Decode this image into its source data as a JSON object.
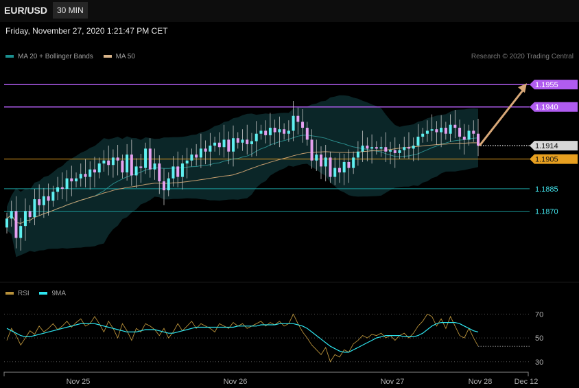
{
  "header": {
    "symbol": "EUR/USD",
    "timeframe": "30 MIN"
  },
  "datetime": "Friday, November 27, 2020 1:21:47 PM CET",
  "legend": {
    "main": [
      {
        "label": "MA 20 + Bollinger Bands",
        "color": "#1a8f8f"
      },
      {
        "label": "MA 50",
        "color": "#d8b48a"
      }
    ],
    "rsi": [
      {
        "label": "RSI",
        "color": "#b8913a"
      },
      {
        "label": "9MA",
        "color": "#2ee6f0"
      }
    ]
  },
  "credit": "Research © 2020 Trading Central",
  "colors": {
    "up_candle": "#5ff0f0",
    "down_candle": "#e6a0f0",
    "resistance": "#b05cf0",
    "support": "#1a9a9a",
    "pivot": "#e8a020",
    "arrow": "#d8a878"
  },
  "chart_data": [
    {
      "type": "candlestick",
      "y_range": [
        1.1825,
        1.1968
      ],
      "x_labels": [
        "Nov 25",
        "Nov 26",
        "Nov 27",
        "Nov 28",
        "Dec 12"
      ],
      "price_levels": [
        {
          "label": "1.1955",
          "value": 1.1955,
          "kind": "resistance",
          "tag": "filled"
        },
        {
          "label": "1.1940",
          "value": 1.194,
          "kind": "resistance",
          "tag": "filled"
        },
        {
          "label": "1.1914",
          "value": 1.1914,
          "kind": "last",
          "tag": "filled"
        },
        {
          "label": "1.1905",
          "value": 1.1905,
          "kind": "pivot",
          "tag": "filled"
        },
        {
          "label": "1.1885",
          "value": 1.1885,
          "kind": "support",
          "tag": "text"
        },
        {
          "label": "1.1870",
          "value": 1.187,
          "kind": "support",
          "tag": "text"
        }
      ],
      "close_path": [
        1.1865,
        1.187,
        1.1852,
        1.186,
        1.187,
        1.1866,
        1.1878,
        1.1874,
        1.188,
        1.1877,
        1.1883,
        1.1886,
        1.1885,
        1.1892,
        1.189,
        1.1892,
        1.1895,
        1.1893,
        1.1898,
        1.1896,
        1.1902,
        1.1904,
        1.1901,
        1.1906,
        1.1904,
        1.1896,
        1.1908,
        1.1894,
        1.19,
        1.1899,
        1.1912,
        1.1898,
        1.1902,
        1.189,
        1.1884,
        1.1892,
        1.19,
        1.1893,
        1.1902,
        1.1904,
        1.1908,
        1.1906,
        1.1912,
        1.191,
        1.1914,
        1.1916,
        1.1913,
        1.1918,
        1.191,
        1.1919,
        1.1916,
        1.1918,
        1.1915,
        1.1917,
        1.1922,
        1.1924,
        1.1921,
        1.1926,
        1.1923,
        1.1925,
        1.1922,
        1.1924,
        1.1934,
        1.193,
        1.1926,
        1.1918,
        1.1904,
        1.1908,
        1.19,
        1.1906,
        1.1893,
        1.1899,
        1.1896,
        1.1903,
        1.1899,
        1.1906,
        1.191,
        1.1914,
        1.1912,
        1.1913,
        1.1912,
        1.1913,
        1.191,
        1.1911,
        1.1909,
        1.1911,
        1.1913,
        1.1912,
        1.1914,
        1.192,
        1.1922,
        1.1924,
        1.1925,
        1.1923,
        1.1926,
        1.1922,
        1.1928,
        1.1926,
        1.192,
        1.1918,
        1.1924,
        1.1922,
        1.1914
      ],
      "forecast_arrow": {
        "from": 1.1914,
        "to": 1.1955
      }
    },
    {
      "type": "line",
      "title": "RSI",
      "y_range": [
        27,
        76
      ],
      "y_ticks": [
        70,
        50,
        30
      ],
      "series": [
        {
          "name": "RSI",
          "values": [
            48,
            58,
            52,
            44,
            50,
            56,
            53,
            60,
            55,
            58,
            62,
            57,
            60,
            64,
            59,
            63,
            66,
            60,
            62,
            68,
            62,
            55,
            64,
            58,
            50,
            62,
            56,
            48,
            58,
            55,
            62,
            60,
            57,
            52,
            58,
            50,
            55,
            62,
            56,
            60,
            64,
            58,
            62,
            60,
            58,
            55,
            62,
            60,
            58,
            63,
            60,
            62,
            58,
            60,
            62,
            64,
            60,
            63,
            61,
            64,
            60,
            62,
            70,
            62,
            55,
            50,
            44,
            40,
            36,
            42,
            30,
            36,
            34,
            40,
            38,
            45,
            48,
            52,
            50,
            53,
            52,
            54,
            50,
            52,
            48,
            52,
            54,
            50,
            54,
            60,
            64,
            70,
            68,
            60,
            66,
            58,
            68,
            60,
            52,
            50,
            58,
            50,
            43
          ]
        },
        {
          "name": "9MA",
          "values": [
            58,
            56,
            54,
            52,
            51,
            51,
            52,
            53,
            54,
            55,
            56,
            57,
            58,
            59,
            60,
            61,
            62,
            62,
            62,
            62,
            61,
            60,
            59,
            58,
            57,
            56,
            55,
            55,
            55,
            56,
            57,
            57,
            57,
            56,
            55,
            54,
            54,
            55,
            56,
            57,
            58,
            59,
            59,
            59,
            59,
            59,
            59,
            59,
            59,
            59,
            60,
            60,
            60,
            60,
            60,
            61,
            61,
            61,
            61,
            62,
            62,
            62,
            62,
            61,
            60,
            58,
            55,
            52,
            49,
            46,
            43,
            41,
            39,
            38,
            38,
            40,
            42,
            44,
            46,
            48,
            50,
            51,
            52,
            52,
            52,
            52,
            51,
            51,
            51,
            52,
            54,
            57,
            60,
            62,
            63,
            63,
            63,
            63,
            62,
            60,
            58,
            56,
            55
          ]
        }
      ]
    }
  ]
}
